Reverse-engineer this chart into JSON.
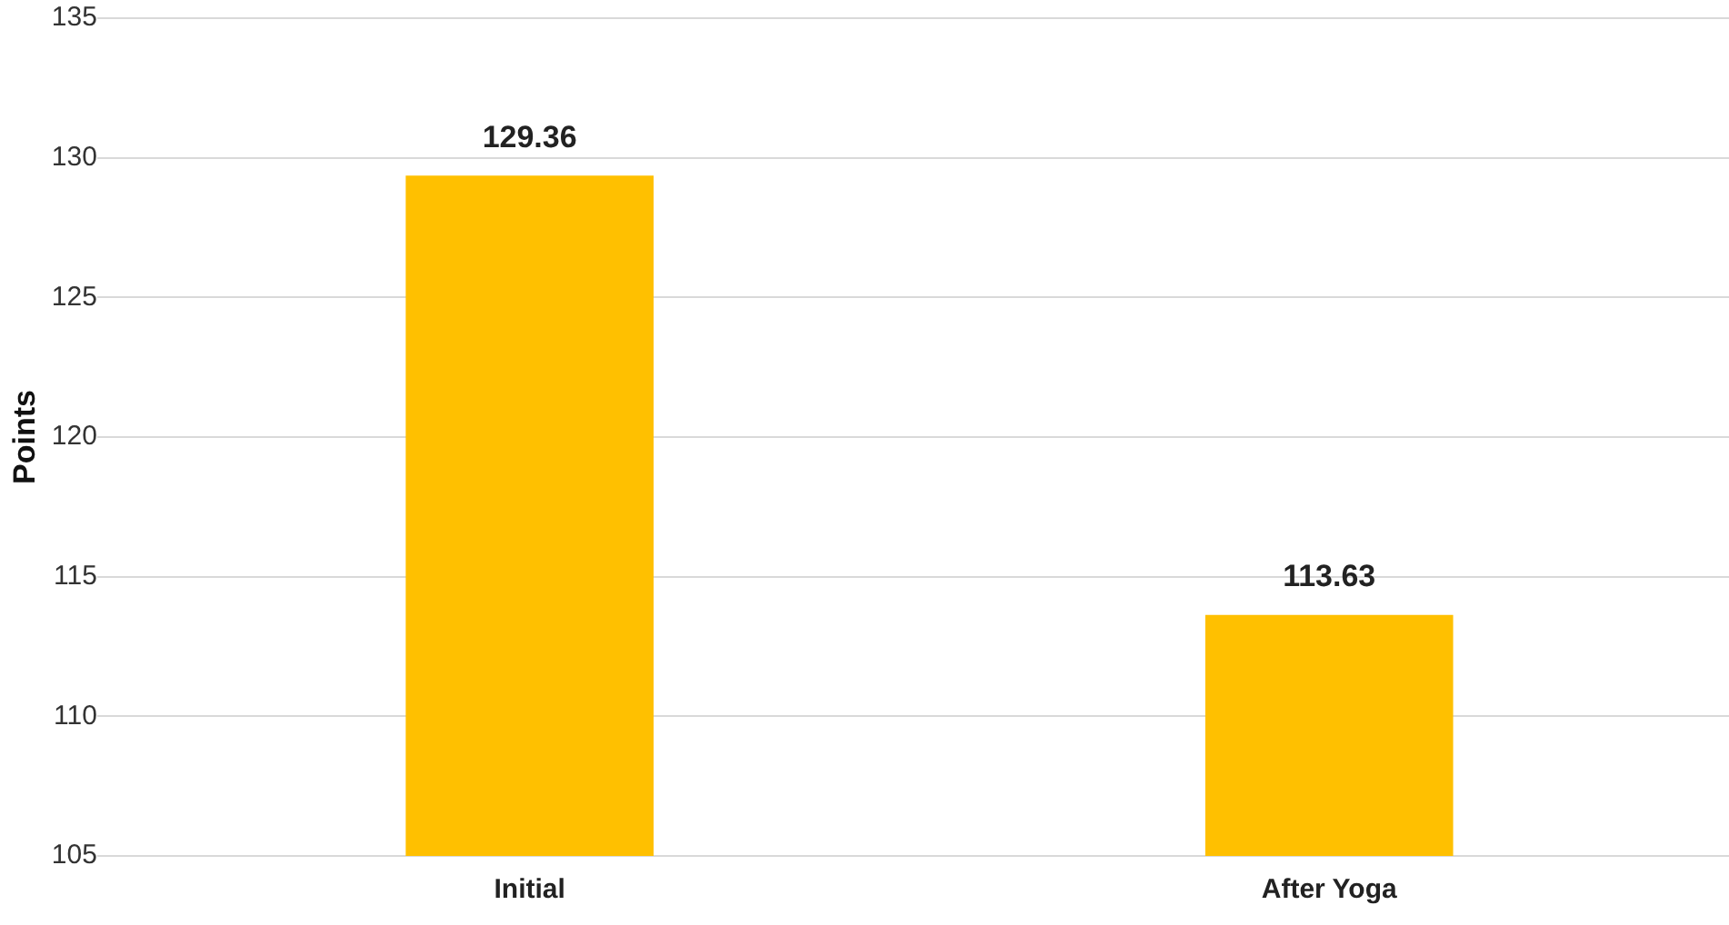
{
  "chart_data": {
    "type": "bar",
    "ylabel": "Points",
    "categories": [
      "Initial",
      "After Yoga"
    ],
    "values": [
      129.36,
      113.63
    ],
    "color": "#ffc000",
    "ylim": [
      105,
      135
    ],
    "yticks": [
      105,
      110,
      115,
      120,
      125,
      130,
      135
    ],
    "grid": "y",
    "data_labels": true
  }
}
